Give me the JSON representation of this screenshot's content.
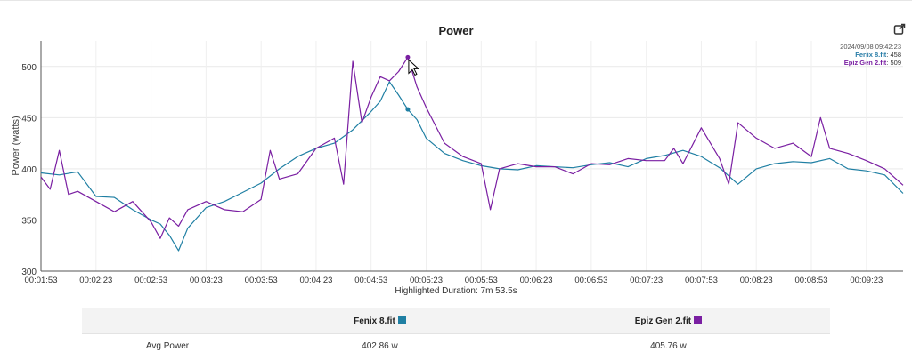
{
  "chart": {
    "title": "Power",
    "ylabel": "Power (watts)",
    "highlight_label": "Highlighted Duration: 7m 53.5s",
    "export_icon": "external-link-icon"
  },
  "tooltip": {
    "timestamp": "2024/09/08 09:42:23",
    "series1_name": "Fenix 8.fit",
    "series1_value": "458",
    "series2_name": "Epiz Gen 2.fit",
    "series2_value": "509"
  },
  "table": {
    "col1": "Fenix 8.fit",
    "col2": "Epiz Gen 2.fit",
    "row_label": "Avg Power",
    "val1": "402.86 w",
    "val2": "405.76 w",
    "color1": "#1f7fa3",
    "color2": "#7a1fa2"
  },
  "chart_data": {
    "type": "line",
    "title": "Power",
    "xlabel": "",
    "ylabel": "Power (watts)",
    "xlim": [
      "00:01:53",
      "00:09:43"
    ],
    "ylim": [
      300,
      525
    ],
    "yticks": [
      300,
      350,
      400,
      450,
      500
    ],
    "xticks": [
      "00:01:53",
      "00:02:23",
      "00:02:53",
      "00:03:23",
      "00:03:53",
      "00:04:23",
      "00:04:53",
      "00:05:23",
      "00:05:53",
      "00:06:23",
      "00:06:53",
      "00:07:23",
      "00:07:53",
      "00:08:23",
      "00:08:53",
      "00:09:23"
    ],
    "grid": true,
    "highlight_x": "00:05:13",
    "series": [
      {
        "name": "Fenix 8.fit",
        "color": "#1f7fa3",
        "x": [
          "00:01:53",
          "00:02:03",
          "00:02:13",
          "00:02:23",
          "00:02:33",
          "00:02:43",
          "00:02:53",
          "00:02:58",
          "00:03:03",
          "00:03:08",
          "00:03:13",
          "00:03:23",
          "00:03:33",
          "00:03:43",
          "00:03:53",
          "00:04:03",
          "00:04:13",
          "00:04:23",
          "00:04:33",
          "00:04:43",
          "00:04:53",
          "00:04:58",
          "00:05:03",
          "00:05:08",
          "00:05:13",
          "00:05:18",
          "00:05:23",
          "00:05:33",
          "00:05:43",
          "00:05:53",
          "00:06:03",
          "00:06:13",
          "00:06:23",
          "00:06:33",
          "00:06:43",
          "00:06:53",
          "00:07:03",
          "00:07:13",
          "00:07:23",
          "00:07:33",
          "00:07:43",
          "00:07:53",
          "00:08:03",
          "00:08:13",
          "00:08:23",
          "00:08:33",
          "00:08:43",
          "00:08:53",
          "00:09:03",
          "00:09:13",
          "00:09:23",
          "00:09:33",
          "00:09:43"
        ],
        "y": [
          396,
          394,
          397,
          373,
          372,
          360,
          350,
          346,
          335,
          320,
          342,
          362,
          368,
          377,
          386,
          400,
          412,
          420,
          425,
          438,
          456,
          466,
          485,
          472,
          458,
          448,
          430,
          415,
          408,
          403,
          400,
          399,
          403,
          402,
          401,
          404,
          406,
          402,
          410,
          413,
          418,
          412,
          401,
          385,
          400,
          405,
          407,
          406,
          410,
          400,
          398,
          394,
          376
        ]
      },
      {
        "name": "Epiz Gen 2.fit",
        "color": "#7a1fa2",
        "x": [
          "00:01:53",
          "00:01:58",
          "00:02:03",
          "00:02:08",
          "00:02:13",
          "00:02:23",
          "00:02:33",
          "00:02:43",
          "00:02:53",
          "00:02:58",
          "00:03:03",
          "00:03:08",
          "00:03:13",
          "00:03:23",
          "00:03:33",
          "00:03:43",
          "00:03:53",
          "00:03:58",
          "00:04:03",
          "00:04:13",
          "00:04:23",
          "00:04:33",
          "00:04:38",
          "00:04:43",
          "00:04:48",
          "00:04:53",
          "00:04:58",
          "00:05:03",
          "00:05:08",
          "00:05:13",
          "00:05:18",
          "00:05:23",
          "00:05:33",
          "00:05:43",
          "00:05:53",
          "00:05:58",
          "00:06:03",
          "00:06:13",
          "00:06:23",
          "00:06:33",
          "00:06:43",
          "00:06:53",
          "00:07:03",
          "00:07:13",
          "00:07:23",
          "00:07:33",
          "00:07:38",
          "00:07:43",
          "00:07:53",
          "00:08:03",
          "00:08:08",
          "00:08:13",
          "00:08:23",
          "00:08:33",
          "00:08:43",
          "00:08:53",
          "00:08:58",
          "00:09:03",
          "00:09:13",
          "00:09:23",
          "00:09:33",
          "00:09:43"
        ],
        "y": [
          392,
          380,
          418,
          375,
          378,
          368,
          358,
          368,
          348,
          332,
          352,
          344,
          360,
          368,
          360,
          358,
          370,
          418,
          390,
          395,
          420,
          430,
          385,
          505,
          445,
          470,
          490,
          486,
          495,
          509,
          480,
          460,
          425,
          412,
          405,
          360,
          400,
          405,
          402,
          402,
          395,
          405,
          404,
          410,
          408,
          408,
          420,
          405,
          440,
          410,
          385,
          445,
          430,
          420,
          425,
          412,
          450,
          420,
          415,
          408,
          400,
          384
        ]
      }
    ]
  }
}
